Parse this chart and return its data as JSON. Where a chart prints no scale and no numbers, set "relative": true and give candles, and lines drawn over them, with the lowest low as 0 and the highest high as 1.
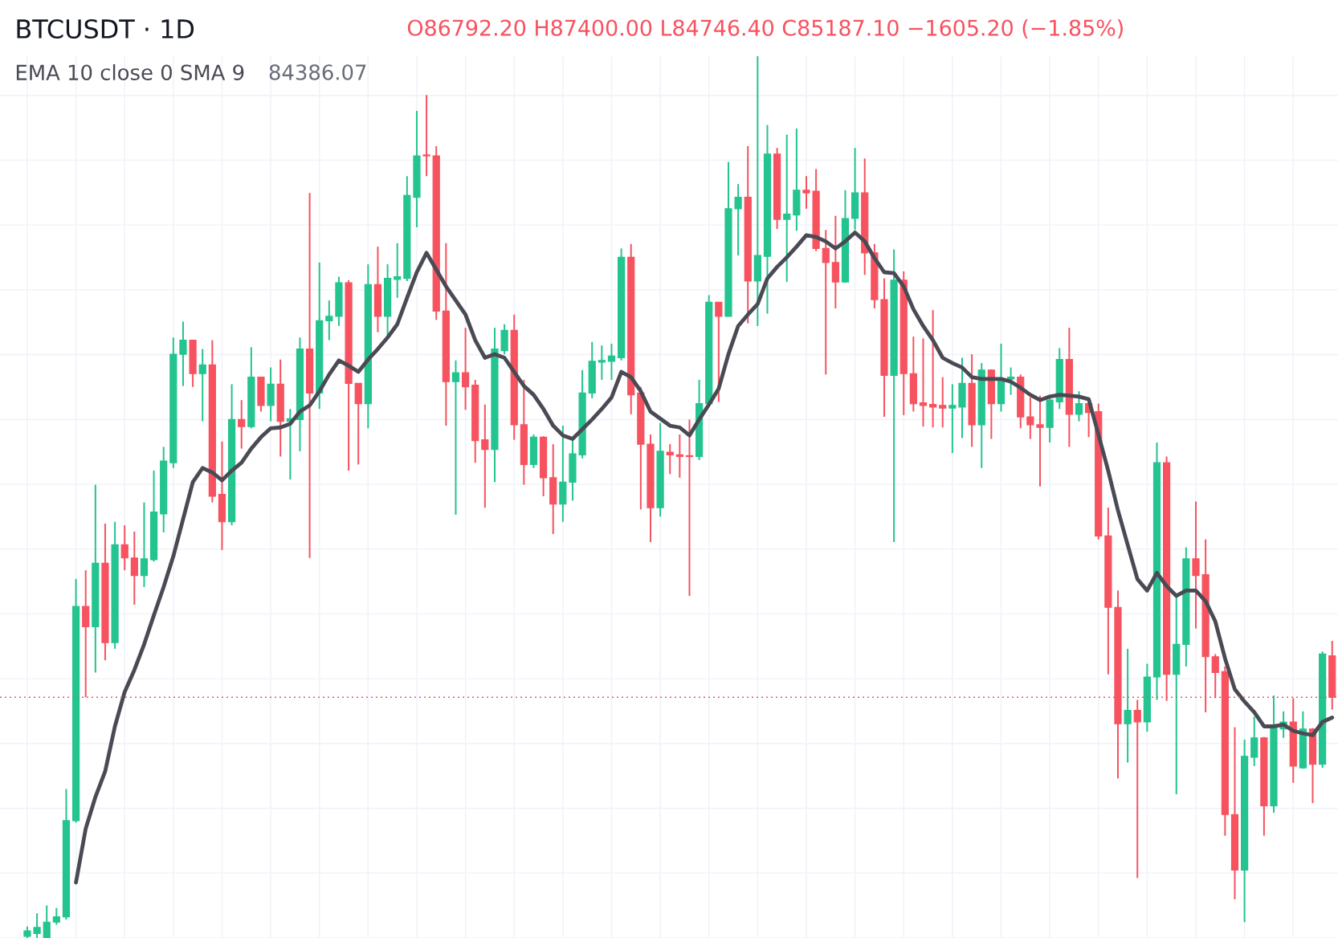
{
  "chart_data": {
    "type": "candlestick",
    "title": "BTCUSDT · 1D",
    "subtitle": "O86792.20 H87400.00 L84746.40 C85187.10 −1605.20 (−1.85%)",
    "relative": true,
    "grid": true,
    "legend": "top left",
    "annotations": [
      "84386.07"
    ],
    "categories": [
      null,
      null,
      null,
      null,
      null,
      null,
      null,
      null,
      null,
      null,
      null,
      null,
      null,
      null,
      null,
      null,
      null,
      null,
      null,
      null,
      null,
      null,
      null,
      null,
      null,
      null,
      null,
      null,
      null,
      null,
      null,
      null,
      null,
      null,
      null,
      null,
      null,
      null,
      null,
      null,
      null,
      null,
      null,
      null,
      null,
      null,
      null,
      null,
      null,
      null,
      null,
      null,
      null,
      null,
      null,
      null,
      null,
      null,
      null,
      null,
      null,
      null,
      null,
      null,
      null,
      null,
      null,
      null,
      null,
      null,
      null,
      null,
      null,
      null,
      null,
      null,
      null,
      null,
      null,
      null,
      null,
      null,
      null,
      null,
      null,
      null,
      null,
      null,
      null,
      null,
      null,
      null,
      null,
      null,
      null,
      null,
      null,
      null,
      null,
      null,
      null,
      null,
      null,
      null,
      null,
      null,
      null,
      null,
      null,
      null,
      null,
      null,
      null,
      null,
      null,
      null,
      null,
      null,
      null,
      null,
      null,
      null,
      null,
      null,
      null,
      null,
      null,
      null,
      null,
      null,
      null,
      null,
      null,
      null,
      null
    ],
    "ohlc": [
      [
        0.002,
        0.013,
        0,
        0.008
      ],
      [
        0.005,
        0.028,
        0,
        0.012
      ],
      [
        0,
        0.037,
        0,
        0.018
      ],
      [
        0.018,
        0.034,
        0.015,
        0.024
      ],
      [
        0.024,
        0.169,
        0.021,
        0.133
      ],
      [
        0.133,
        0.407,
        0.131,
        0.376
      ],
      [
        0.376,
        0.417,
        0.273,
        0.353
      ],
      [
        0.353,
        0.514,
        0.301,
        0.425
      ],
      [
        0.425,
        0.47,
        0.315,
        0.335
      ],
      [
        0.335,
        0.472,
        0.328,
        0.446
      ],
      [
        0.446,
        0.468,
        0.417,
        0.431
      ],
      [
        0.431,
        0.461,
        0.378,
        0.411
      ],
      [
        0.411,
        0.494,
        0.398,
        0.43
      ],
      [
        0.429,
        0.53,
        0.427,
        0.483
      ],
      [
        0.481,
        0.557,
        0.46,
        0.541
      ],
      [
        0.539,
        0.681,
        0.533,
        0.662
      ],
      [
        0.662,
        0.699,
        0.626,
        0.678
      ],
      [
        0.678,
        0.678,
        0.625,
        0.64
      ],
      [
        0.64,
        0.668,
        0.586,
        0.65
      ],
      [
        0.65,
        0.678,
        0.494,
        0.501
      ],
      [
        0.503,
        0.563,
        0.44,
        0.472
      ],
      [
        0.472,
        0.628,
        0.468,
        0.588
      ],
      [
        0.588,
        0.61,
        0.555,
        0.58
      ],
      [
        0.58,
        0.67,
        0.578,
        0.636
      ],
      [
        0.636,
        0.636,
        0.597,
        0.604
      ],
      [
        0.604,
        0.647,
        0.586,
        0.628
      ],
      [
        0.628,
        0.656,
        0.546,
        0.586
      ],
      [
        0.586,
        0.6,
        0.52,
        0.589
      ],
      [
        0.588,
        0.681,
        0.552,
        0.668
      ],
      [
        0.668,
        0.845,
        0.431,
        0.618
      ],
      [
        0.618,
        0.766,
        0.6,
        0.7
      ],
      [
        0.7,
        0.723,
        0.678,
        0.705
      ],
      [
        0.705,
        0.75,
        0.694,
        0.743
      ],
      [
        0.743,
        0.746,
        0.53,
        0.629
      ],
      [
        0.629,
        0.629,
        0.537,
        0.606
      ],
      [
        0.606,
        0.764,
        0.578,
        0.741
      ],
      [
        0.741,
        0.784,
        0.687,
        0.705
      ],
      [
        0.705,
        0.764,
        0.684,
        0.748
      ],
      [
        0.747,
        0.788,
        0.726,
        0.75
      ],
      [
        0.748,
        0.864,
        0.745,
        0.842
      ],
      [
        0.84,
        0.938,
        0.806,
        0.887
      ],
      [
        0.888,
        0.956,
        0.864,
        0.887
      ],
      [
        0.887,
        0.898,
        0.701,
        0.711
      ],
      [
        0.711,
        0.788,
        0.581,
        0.631
      ],
      [
        0.631,
        0.655,
        0.48,
        0.641
      ],
      [
        0.641,
        0.692,
        0.599,
        0.625
      ],
      [
        0.627,
        0.633,
        0.539,
        0.564
      ],
      [
        0.565,
        0.605,
        0.488,
        0.554
      ],
      [
        0.554,
        0.692,
        0.517,
        0.668
      ],
      [
        0.666,
        0.696,
        0.662,
        0.689
      ],
      [
        0.689,
        0.707,
        0.565,
        0.582
      ],
      [
        0.582,
        0.633,
        0.514,
        0.537
      ],
      [
        0.537,
        0.571,
        0.533,
        0.568
      ],
      [
        0.568,
        0.569,
        0.501,
        0.522
      ],
      [
        0.522,
        0.56,
        0.458,
        0.492
      ],
      [
        0.492,
        0.581,
        0.472,
        0.517
      ],
      [
        0.517,
        0.565,
        0.496,
        0.549
      ],
      [
        0.548,
        0.644,
        0.544,
        0.618
      ],
      [
        0.618,
        0.676,
        0.612,
        0.654
      ],
      [
        0.653,
        0.672,
        0.633,
        0.655
      ],
      [
        0.654,
        0.674,
        0.633,
        0.66
      ],
      [
        0.658,
        0.782,
        0.655,
        0.772
      ],
      [
        0.772,
        0.787,
        0.594,
        0.616
      ],
      [
        0.618,
        0.625,
        0.486,
        0.56
      ],
      [
        0.56,
        0.571,
        0.449,
        0.488
      ],
      [
        0.488,
        0.584,
        0.478,
        0.552
      ],
      [
        0.551,
        0.56,
        0.526,
        0.548
      ],
      [
        0.548,
        0.571,
        0.522,
        0.546
      ],
      [
        0.547,
        0.588,
        0.388,
        0.546
      ],
      [
        0.546,
        0.633,
        0.542,
        0.606
      ],
      [
        0.606,
        0.729,
        0.604,
        0.721
      ],
      [
        0.721,
        0.721,
        0.608,
        0.705
      ],
      [
        0.705,
        0.88,
        0.705,
        0.827
      ],
      [
        0.827,
        0.855,
        0.774,
        0.84
      ],
      [
        0.84,
        0.898,
        0.697,
        0.745
      ],
      [
        0.745,
        1.0,
        0.694,
        0.774
      ],
      [
        0.773,
        0.922,
        0.708,
        0.889
      ],
      [
        0.889,
        0.896,
        0.804,
        0.815
      ],
      [
        0.815,
        0.911,
        0.744,
        0.821
      ],
      [
        0.82,
        0.918,
        0.802,
        0.848
      ],
      [
        0.848,
        0.864,
        0.827,
        0.845
      ],
      [
        0.847,
        0.872,
        0.779,
        0.782
      ],
      [
        0.782,
        0.803,
        0.639,
        0.766
      ],
      [
        0.766,
        0.819,
        0.714,
        0.744
      ],
      [
        0.744,
        0.848,
        0.743,
        0.816
      ],
      [
        0.816,
        0.896,
        0.803,
        0.845
      ],
      [
        0.845,
        0.884,
        0.752,
        0.777
      ],
      [
        0.777,
        0.787,
        0.714,
        0.724
      ],
      [
        0.724,
        0.748,
        0.591,
        0.638
      ],
      [
        0.638,
        0.781,
        0.449,
        0.746
      ],
      [
        0.746,
        0.756,
        0.593,
        0.64
      ],
      [
        0.64,
        0.682,
        0.597,
        0.606
      ],
      [
        0.607,
        0.68,
        0.58,
        0.604
      ],
      [
        0.605,
        0.712,
        0.579,
        0.602
      ],
      [
        0.604,
        0.636,
        0.579,
        0.601
      ],
      [
        0.601,
        0.628,
        0.55,
        0.604
      ],
      [
        0.602,
        0.658,
        0.567,
        0.629
      ],
      [
        0.629,
        0.662,
        0.557,
        0.582
      ],
      [
        0.582,
        0.652,
        0.533,
        0.644
      ],
      [
        0.644,
        0.645,
        0.566,
        0.606
      ],
      [
        0.606,
        0.674,
        0.597,
        0.634
      ],
      [
        0.634,
        0.647,
        0.616,
        0.636
      ],
      [
        0.636,
        0.639,
        0.578,
        0.591
      ],
      [
        0.591,
        0.613,
        0.566,
        0.582
      ],
      [
        0.582,
        0.615,
        0.512,
        0.579
      ],
      [
        0.579,
        0.616,
        0.562,
        0.61
      ],
      [
        0.608,
        0.669,
        0.6,
        0.656
      ],
      [
        0.656,
        0.692,
        0.557,
        0.594
      ],
      [
        0.594,
        0.62,
        0.586,
        0.606
      ],
      [
        0.606,
        0.612,
        0.568,
        0.596
      ],
      [
        0.597,
        0.606,
        0.452,
        0.456
      ],
      [
        0.456,
        0.488,
        0.299,
        0.375
      ],
      [
        0.375,
        0.394,
        0.181,
        0.243
      ],
      [
        0.243,
        0.328,
        0.199,
        0.258
      ],
      [
        0.258,
        0.27,
        0.068,
        0.245
      ],
      [
        0.245,
        0.311,
        0.234,
        0.296
      ],
      [
        0.296,
        0.562,
        0.27,
        0.539
      ],
      [
        0.539,
        0.546,
        0.269,
        0.299
      ],
      [
        0.299,
        0.388,
        0.163,
        0.333
      ],
      [
        0.333,
        0.443,
        0.308,
        0.43
      ],
      [
        0.43,
        0.495,
        0.351,
        0.411
      ],
      [
        0.412,
        0.452,
        0.256,
        0.319
      ],
      [
        0.319,
        0.322,
        0.272,
        0.301
      ],
      [
        0.302,
        0.308,
        0.116,
        0.14
      ],
      [
        0.14,
        0.239,
        0.044,
        0.077
      ],
      [
        0.077,
        0.225,
        0.018,
        0.206
      ],
      [
        0.205,
        0.251,
        0.195,
        0.227
      ],
      [
        0.227,
        0.228,
        0.116,
        0.15
      ],
      [
        0.15,
        0.275,
        0.142,
        0.238
      ],
      [
        0.237,
        0.257,
        0.227,
        0.245
      ],
      [
        0.245,
        0.272,
        0.176,
        0.195
      ],
      [
        0.193,
        0.257,
        0.192,
        0.237
      ],
      [
        0.237,
        0.238,
        0.153,
        0.197
      ],
      [
        0.197,
        0.325,
        0.193,
        0.322
      ],
      [
        0.32,
        0.337,
        0.259,
        0.273
      ]
    ],
    "colors": [
      "#23c48f",
      "#23c48f",
      "#23c48f",
      "#23c48f",
      "#23c48f",
      "#23c48f",
      "#f7525f",
      "#23c48f",
      "#f7525f",
      "#23c48f",
      "#f7525f",
      "#f7525f",
      "#23c48f",
      "#23c48f",
      "#23c48f",
      "#23c48f",
      "#23c48f",
      "#f7525f",
      "#23c48f",
      "#f7525f",
      "#f7525f",
      "#23c48f",
      "#f7525f",
      "#23c48f",
      "#f7525f",
      "#23c48f",
      "#f7525f",
      "#23c48f",
      "#23c48f",
      "#f7525f",
      "#23c48f",
      "#23c48f",
      "#23c48f",
      "#f7525f",
      "#f7525f",
      "#23c48f",
      "#f7525f",
      "#23c48f",
      "#23c48f",
      "#23c48f",
      "#23c48f",
      "#f7525f",
      "#f7525f",
      "#f7525f",
      "#23c48f",
      "#f7525f",
      "#f7525f",
      "#f7525f",
      "#23c48f",
      "#23c48f",
      "#f7525f",
      "#f7525f",
      "#23c48f",
      "#f7525f",
      "#f7525f",
      "#23c48f",
      "#23c48f",
      "#23c48f",
      "#23c48f",
      "#23c48f",
      "#23c48f",
      "#23c48f",
      "#f7525f",
      "#f7525f",
      "#f7525f",
      "#23c48f",
      "#f7525f",
      "#f7525f",
      "#f7525f",
      "#23c48f",
      "#23c48f",
      "#f7525f",
      "#23c48f",
      "#23c48f",
      "#f7525f",
      "#23c48f",
      "#23c48f",
      "#f7525f",
      "#23c48f",
      "#23c48f",
      "#f7525f",
      "#f7525f",
      "#f7525f",
      "#f7525f",
      "#23c48f",
      "#23c48f",
      "#f7525f",
      "#f7525f",
      "#f7525f",
      "#23c48f",
      "#f7525f",
      "#f7525f",
      "#f7525f",
      "#f7525f",
      "#f7525f",
      "#23c48f",
      "#23c48f",
      "#f7525f",
      "#23c48f",
      "#f7525f",
      "#23c48f",
      "#23c48f",
      "#f7525f",
      "#f7525f",
      "#f7525f",
      "#23c48f",
      "#23c48f",
      "#f7525f",
      "#23c48f",
      "#f7525f",
      "#f7525f",
      "#f7525f",
      "#f7525f",
      "#23c48f",
      "#f7525f",
      "#23c48f",
      "#23c48f",
      "#f7525f",
      "#23c48f",
      "#23c48f",
      "#f7525f",
      "#f7525f",
      "#f7525f",
      "#f7525f",
      "#f7525f",
      "#23c48f",
      "#23c48f",
      "#f7525f",
      "#23c48f",
      "#23c48f",
      "#f7525f",
      "#23c48f",
      "#f7525f",
      "#23c48f",
      "#f7525f"
    ],
    "series": [
      {
        "type": "line",
        "name": "EMA 10 close 0 SMA 9",
        "color": "#4a4a55",
        "values": [
          null,
          null,
          null,
          null,
          null,
          0.063,
          0.124,
          0.16,
          0.189,
          0.24,
          0.279,
          0.304,
          0.333,
          0.366,
          0.398,
          0.433,
          0.475,
          0.517,
          0.533,
          0.528,
          0.519,
          0.53,
          0.539,
          0.555,
          0.568,
          0.578,
          0.579,
          0.583,
          0.597,
          0.604,
          0.62,
          0.639,
          0.655,
          0.649,
          0.642,
          0.656,
          0.668,
          0.681,
          0.696,
          0.726,
          0.755,
          0.777,
          0.758,
          0.739,
          0.723,
          0.707,
          0.678,
          0.658,
          0.662,
          0.658,
          0.642,
          0.626,
          0.616,
          0.6,
          0.581,
          0.57,
          0.566,
          0.577,
          0.588,
          0.6,
          0.613,
          0.642,
          0.636,
          0.62,
          0.597,
          0.589,
          0.581,
          0.579,
          0.57,
          0.588,
          0.605,
          0.623,
          0.662,
          0.694,
          0.707,
          0.719,
          0.748,
          0.761,
          0.772,
          0.784,
          0.797,
          0.795,
          0.79,
          0.782,
          0.79,
          0.8,
          0.79,
          0.771,
          0.755,
          0.754,
          0.739,
          0.713,
          0.694,
          0.678,
          0.658,
          0.652,
          0.647,
          0.636,
          0.634,
          0.634,
          0.634,
          0.631,
          0.624,
          0.616,
          0.61,
          0.614,
          0.616,
          0.615,
          0.614,
          0.611,
          0.571,
          0.53,
          0.485,
          0.446,
          0.407,
          0.394,
          0.414,
          0.399,
          0.388,
          0.394,
          0.394,
          0.382,
          0.359,
          0.317,
          0.282,
          0.268,
          0.256,
          0.24,
          0.24,
          0.242,
          0.235,
          0.232,
          0.23,
          0.245,
          0.25
        ]
      }
    ],
    "ref_lines": [
      {
        "axis": "y",
        "value": 0.273,
        "color": "#f7525f",
        "line_style": "dotted"
      }
    ]
  }
}
